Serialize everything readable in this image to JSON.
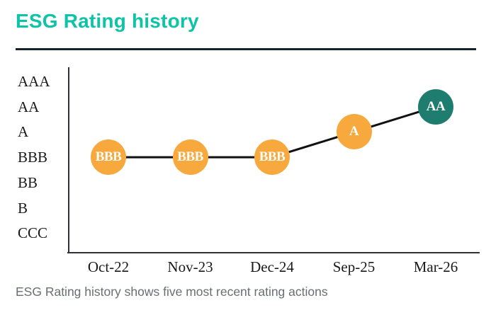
{
  "page": {
    "title": "ESG Rating history",
    "caption": "ESG Rating history shows five most recent rating actions"
  },
  "colors": {
    "title_teal": "#0FC3A7",
    "divider_dark": "#16212B",
    "axis_dark": "#2E3138",
    "label_dark": "#1A1A1A",
    "caption_gray": "#696E72",
    "line_black": "#111111",
    "point_orange": "#F7A93E",
    "point_teal": "#1F7D70",
    "point_text_white": "#FDFDFB"
  },
  "chart_data": {
    "type": "line",
    "title": "ESG Rating history",
    "x": [
      "Oct-22",
      "Nov-23",
      "Dec-24",
      "Sep-25",
      "Mar-26"
    ],
    "y_scale_top_to_bottom": [
      "AAA",
      "AA",
      "A",
      "BBB",
      "BB",
      "B",
      "CCC"
    ],
    "series": [
      {
        "name": "ESG Rating",
        "values": [
          "BBB",
          "BBB",
          "BBB",
          "A",
          "AA"
        ],
        "point_colors": [
          "#F7A93E",
          "#F7A93E",
          "#F7A93E",
          "#F7A93E",
          "#1F7D70"
        ],
        "marker": "labeled-circle"
      }
    ],
    "grid": false,
    "legend_position": "none",
    "annotation": "ESG Rating history shows five most recent rating actions"
  }
}
